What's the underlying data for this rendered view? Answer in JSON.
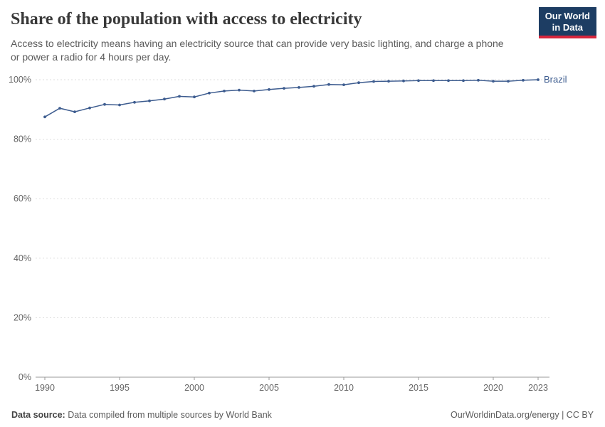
{
  "header": {
    "title": "Share of the population with access to electricity",
    "subtitle": "Access to electricity means having an electricity source that can provide very basic lighting, and charge a phone or power a radio for 4 hours per day.",
    "logo": {
      "line1": "Our World",
      "line2": "in Data"
    }
  },
  "colors": {
    "brand_navy": "#1d3d63",
    "brand_red": "#d7263d",
    "line_color": "#3d5c8f",
    "grid_color": "#dddddd",
    "axis_color": "#999999",
    "tick_text_color": "#666666"
  },
  "chart_data": {
    "type": "line",
    "title": "Share of the population with access to electricity",
    "series": [
      {
        "name": "Brazil",
        "x": [
          1990,
          1991,
          1992,
          1993,
          1994,
          1995,
          1996,
          1997,
          1998,
          1999,
          2000,
          2001,
          2002,
          2003,
          2004,
          2005,
          2006,
          2007,
          2008,
          2009,
          2010,
          2011,
          2012,
          2013,
          2014,
          2015,
          2016,
          2017,
          2018,
          2019,
          2020,
          2021,
          2022,
          2023
        ],
        "values": [
          87.5,
          90.4,
          89.2,
          90.5,
          91.7,
          91.5,
          92.4,
          92.9,
          93.5,
          94.4,
          94.2,
          95.5,
          96.2,
          96.5,
          96.2,
          96.7,
          97.1,
          97.4,
          97.8,
          98.4,
          98.3,
          99.0,
          99.4,
          99.5,
          99.6,
          99.7,
          99.7,
          99.7,
          99.7,
          99.8,
          99.5,
          99.5,
          99.8,
          100.0
        ]
      }
    ],
    "x_ticks": [
      1990,
      1995,
      2000,
      2005,
      2010,
      2015,
      2020,
      2023
    ],
    "y_ticks": [
      0,
      20,
      40,
      60,
      80,
      100
    ],
    "y_tick_suffix": "%",
    "xlim": [
      1990,
      2023
    ],
    "ylim": [
      0,
      100
    ],
    "grid": "dashed horizontal",
    "end_label": "Brazil",
    "legend_position": "end-of-line"
  },
  "footer": {
    "source_label": "Data source:",
    "source_text": " Data compiled from multiple sources by World Bank",
    "right_text": "OurWorldinData.org/energy | CC BY"
  }
}
